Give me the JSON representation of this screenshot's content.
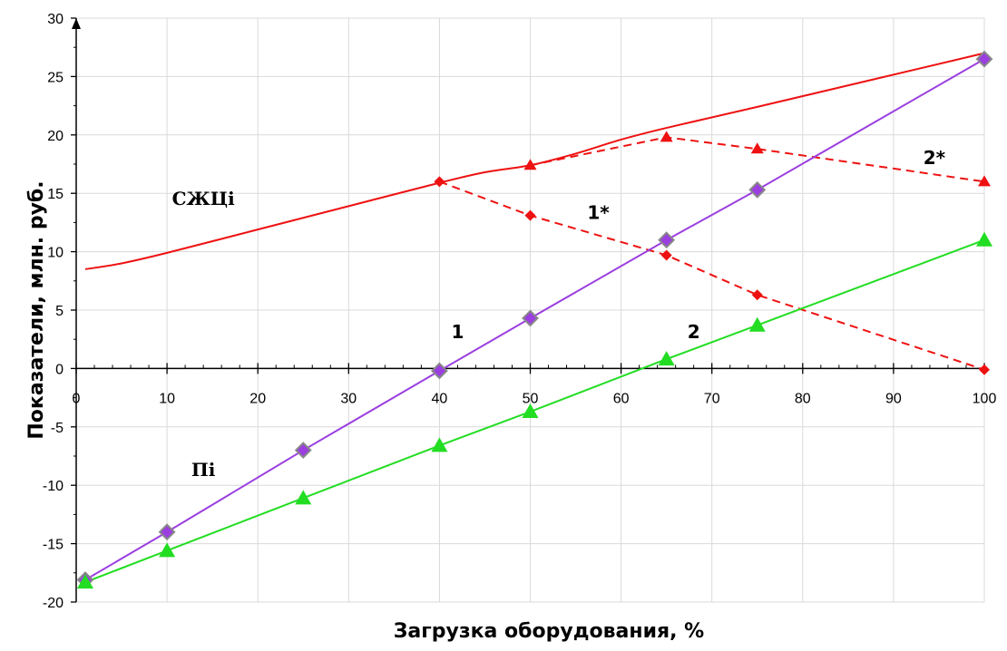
{
  "chart_data": {
    "type": "line",
    "title": "",
    "xlabel": "Загрузка  оборудования, %",
    "ylabel": "Показатели, млн. руб.",
    "xlim": [
      0,
      100
    ],
    "ylim": [
      -20,
      30
    ],
    "x_ticks": [
      0,
      10,
      20,
      30,
      40,
      50,
      60,
      70,
      80,
      90,
      100
    ],
    "y_ticks": [
      -20,
      -15,
      -10,
      -5,
      0,
      5,
      10,
      15,
      20,
      25,
      30
    ],
    "grid": true,
    "legend": "none",
    "colors": {
      "red": "#ee1111",
      "purple": "#9b3fe0",
      "green": "#22dd22",
      "marker_edge": "#888888"
    },
    "series": [
      {
        "id": "szhc",
        "style": "solid",
        "color": "red",
        "marker": "none",
        "points": [
          [
            1,
            8.5
          ],
          [
            5,
            9.0
          ],
          [
            10,
            9.9
          ],
          [
            20,
            11.9
          ],
          [
            30,
            13.9
          ],
          [
            40,
            15.9
          ],
          [
            45,
            16.8
          ],
          [
            50,
            17.4
          ],
          [
            55,
            18.4
          ],
          [
            60,
            19.6
          ],
          [
            65,
            20.6
          ],
          [
            75,
            22.4
          ],
          [
            100,
            27.0
          ]
        ]
      },
      {
        "id": "1-star",
        "style": "dashed",
        "color": "red",
        "marker": "diamond",
        "points": [
          [
            40,
            16.0
          ],
          [
            50,
            13.1
          ],
          [
            65,
            9.7
          ],
          [
            75,
            6.3
          ],
          [
            100,
            -0.1
          ]
        ]
      },
      {
        "id": "2-star",
        "style": "dashed",
        "color": "red",
        "marker": "triangle",
        "points": [
          [
            50,
            17.4
          ],
          [
            65,
            19.8
          ],
          [
            75,
            18.8
          ],
          [
            100,
            16.0
          ]
        ]
      },
      {
        "id": "1",
        "style": "solid",
        "color": "purple",
        "marker": "diamond",
        "points": [
          [
            1,
            -18.1
          ],
          [
            10,
            -14.0
          ],
          [
            25,
            -7.0
          ],
          [
            40,
            -0.2
          ],
          [
            50,
            4.3
          ],
          [
            65,
            11.0
          ],
          [
            75,
            15.3
          ],
          [
            100,
            26.5
          ]
        ]
      },
      {
        "id": "2",
        "style": "solid",
        "color": "green",
        "marker": "triangle",
        "points": [
          [
            1,
            -18.3
          ],
          [
            10,
            -15.6
          ],
          [
            25,
            -11.1
          ],
          [
            40,
            -6.6
          ],
          [
            50,
            -3.7
          ],
          [
            65,
            0.8
          ],
          [
            75,
            3.7
          ],
          [
            100,
            11.0
          ]
        ]
      }
    ],
    "annotations": [
      {
        "text": "СЖЦі",
        "x": 14,
        "y": 14
      },
      {
        "text": "1*",
        "x": 57.5,
        "y": 12.8
      },
      {
        "text": "2*",
        "x": 94.5,
        "y": 17.5
      },
      {
        "text": "1",
        "x": 42,
        "y": 2.6
      },
      {
        "text": "2",
        "x": 68,
        "y": 2.6
      },
      {
        "text": "Пі",
        "x": 14,
        "y": -9.2
      }
    ]
  }
}
